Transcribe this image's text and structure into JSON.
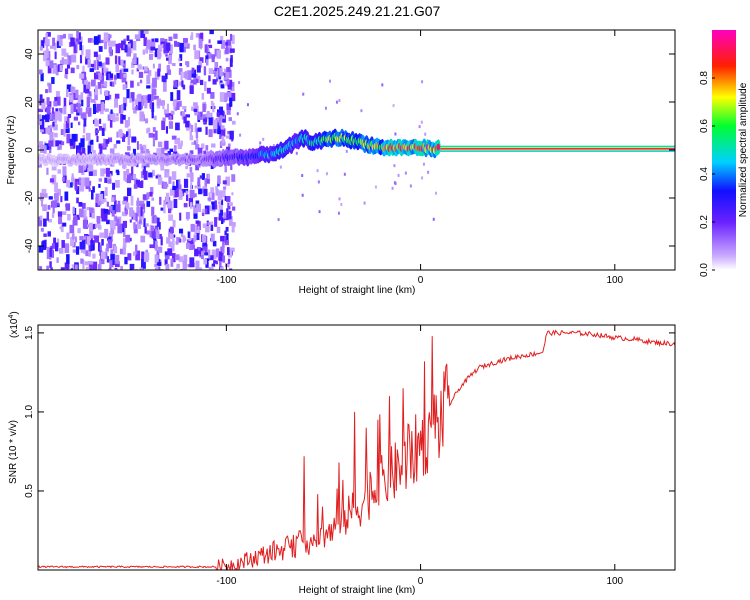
{
  "title": "C2E1.2025.249.21.21.G07",
  "chart_data": [
    {
      "type": "heatmap",
      "name": "spectrogram",
      "xlabel": "Height of straight line (km)",
      "ylabel": "Frequency (Hz)",
      "xlim": [
        -197,
        131
      ],
      "ylim": [
        -50,
        50
      ],
      "xticks": [
        -100,
        0,
        100
      ],
      "xtick_labels": [
        "-100",
        "0",
        "100"
      ],
      "yticks": [
        -40,
        -20,
        0,
        20,
        40
      ],
      "ytick_labels": [
        "-40",
        "-20",
        "0",
        "20",
        "40"
      ],
      "noise_region_km": [
        -197,
        -97
      ],
      "ridge": {
        "x": [
          -197,
          -170,
          -150,
          -130,
          -110,
          -100,
          -90,
          -80,
          -75,
          -70,
          -65,
          -60,
          -55,
          -50,
          -45,
          -40,
          -35,
          -30,
          -25,
          -20,
          -15,
          -10,
          -5,
          0,
          5,
          10,
          131
        ],
        "freq": [
          -4,
          -4,
          -4,
          -4,
          -4,
          -3,
          -3,
          -2,
          -1,
          0,
          3,
          5,
          3,
          4,
          5,
          5,
          4,
          3,
          2,
          1,
          1,
          1,
          1,
          1,
          0.5,
          0.5,
          0.5
        ],
        "amplitude": [
          0.08,
          0.1,
          0.12,
          0.15,
          0.2,
          0.3,
          0.35,
          0.45,
          0.5,
          0.55,
          0.5,
          0.55,
          0.6,
          0.7,
          0.8,
          0.8,
          0.7,
          0.75,
          0.8,
          0.85,
          0.9,
          0.92,
          0.95,
          0.97,
          0.98,
          0.99,
          1.0
        ]
      },
      "colorbar": {
        "label": "Normalized spectral amplitude",
        "range": [
          0,
          1
        ],
        "ticks": [
          0.0,
          0.2,
          0.4,
          0.6,
          0.8
        ],
        "tick_labels": [
          "0.0",
          "0.2",
          "0.4",
          "0.6",
          "0.8"
        ],
        "colors": [
          "#ffffff",
          "#b070ff",
          "#2020ff",
          "#00d0ff",
          "#00ff40",
          "#ffff00",
          "#ff2000",
          "#ff00c0"
        ]
      }
    },
    {
      "type": "line",
      "name": "snr",
      "xlabel": "Height of straight line (km)",
      "ylabel": "SNR (10 * v/v)",
      "multiplier_label": "(x10",
      "multiplier_exp": "4",
      "multiplier_close": ")",
      "xlim": [
        -197,
        131
      ],
      "ylim": [
        0,
        1.55
      ],
      "xticks": [
        -100,
        0,
        100
      ],
      "xtick_labels": [
        "-100",
        "0",
        "100"
      ],
      "yticks": [
        0.5,
        1.0,
        1.5
      ],
      "ytick_labels": [
        "0.5",
        "1.0",
        "1.5"
      ],
      "color": "#e02020",
      "series": [
        {
          "name": "SNR",
          "x": [
            -197,
            -180,
            -160,
            -140,
            -120,
            -105,
            -95,
            -85,
            -75,
            -65,
            -60,
            -55,
            -50,
            -45,
            -40,
            -35,
            -30,
            -25,
            -20,
            -15,
            -10,
            -5,
            0,
            5,
            10,
            15,
            20,
            25,
            30,
            40,
            50,
            60,
            63,
            65,
            70,
            80,
            90,
            100,
            110,
            120,
            131
          ],
          "y": [
            0.02,
            0.02,
            0.02,
            0.02,
            0.02,
            0.02,
            0.04,
            0.08,
            0.12,
            0.15,
            0.2,
            0.15,
            0.22,
            0.25,
            0.3,
            0.38,
            0.42,
            0.5,
            0.55,
            0.6,
            0.65,
            0.72,
            0.8,
            0.88,
            0.95,
            1.05,
            1.15,
            1.22,
            1.28,
            1.32,
            1.35,
            1.37,
            1.38,
            1.5,
            1.5,
            1.5,
            1.49,
            1.47,
            1.46,
            1.44,
            1.43
          ]
        }
      ],
      "spikes": [
        {
          "x": -60,
          "y": 0.72
        },
        {
          "x": -53,
          "y": 0.48
        },
        {
          "x": -42,
          "y": 0.68
        },
        {
          "x": -34,
          "y": 1.0
        },
        {
          "x": -28,
          "y": 0.9
        },
        {
          "x": -22,
          "y": 0.95
        },
        {
          "x": -16,
          "y": 1.1
        },
        {
          "x": -9,
          "y": 1.15
        },
        {
          "x": 2,
          "y": 1.32
        },
        {
          "x": 6,
          "y": 1.48
        }
      ]
    }
  ]
}
